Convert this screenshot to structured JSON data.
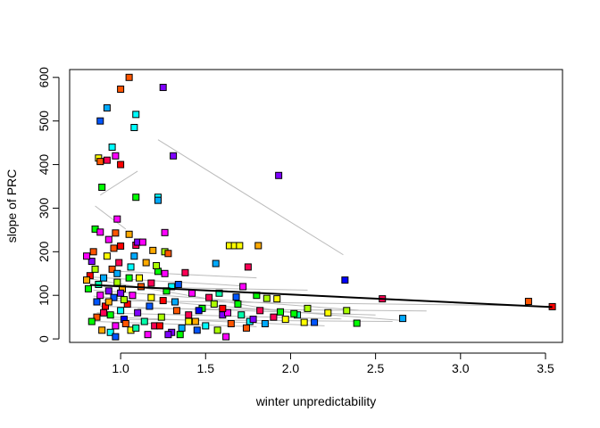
{
  "chart_data": {
    "type": "scatter",
    "title": "",
    "xlabel": "winter unpredictability",
    "ylabel": "slope of PRC",
    "xlim": [
      0.7,
      3.6
    ],
    "ylim": [
      -8,
      618
    ],
    "x_ticks": [
      1.0,
      1.5,
      2.0,
      2.5,
      3.0,
      3.5
    ],
    "x_tick_labels": [
      "1.0",
      "1.5",
      "2.0",
      "2.5",
      "3.0",
      "3.5"
    ],
    "y_ticks": [
      0,
      100,
      200,
      300,
      400,
      500,
      600
    ],
    "y_tick_labels": [
      "0",
      "100",
      "200",
      "300",
      "400",
      "500",
      "600"
    ],
    "grid": false,
    "legend": "none",
    "marker": "square with black border, one fill color per point (rainbow palette)",
    "fit_line": {
      "color": "#000000",
      "x": [
        0.82,
        3.54
      ],
      "y": [
        124,
        73
      ]
    },
    "thin_lines": {
      "color": "#bbbbbb",
      "segments": [
        [
          [
            1.22,
            457
          ],
          [
            2.31,
            193
          ]
        ],
        [
          [
            0.88,
            330
          ],
          [
            1.1,
            385
          ]
        ],
        [
          [
            0.85,
            305
          ],
          [
            1.03,
            252
          ]
        ],
        [
          [
            0.82,
            142
          ],
          [
            1.7,
            122
          ]
        ],
        [
          [
            0.82,
            138
          ],
          [
            2.0,
            60
          ]
        ],
        [
          [
            0.84,
            112
          ],
          [
            2.4,
            66
          ]
        ],
        [
          [
            0.84,
            98
          ],
          [
            2.66,
            42
          ]
        ],
        [
          [
            0.9,
            88
          ],
          [
            3.4,
            76
          ]
        ],
        [
          [
            0.86,
            60
          ],
          [
            2.3,
            46
          ]
        ],
        [
          [
            0.84,
            52
          ],
          [
            2.2,
            30
          ]
        ],
        [
          [
            0.95,
            45
          ],
          [
            2.6,
            40
          ]
        ],
        [
          [
            1.1,
            70
          ],
          [
            2.8,
            64
          ]
        ],
        [
          [
            0.85,
            40
          ],
          [
            1.8,
            28
          ]
        ],
        [
          [
            1.0,
            155
          ],
          [
            1.8,
            140
          ]
        ],
        [
          [
            0.9,
            120
          ],
          [
            2.1,
            112
          ]
        ],
        [
          [
            0.88,
            75
          ],
          [
            2.5,
            55
          ]
        ]
      ]
    },
    "points": [
      {
        "x": 1.05,
        "y": 600,
        "color": "#ff5500"
      },
      {
        "x": 1.0,
        "y": 573,
        "color": "#ff5500"
      },
      {
        "x": 0.92,
        "y": 530,
        "color": "#00aaff"
      },
      {
        "x": 0.88,
        "y": 500,
        "color": "#0055ff"
      },
      {
        "x": 1.09,
        "y": 515,
        "color": "#00ffff"
      },
      {
        "x": 1.08,
        "y": 485,
        "color": "#00ffff"
      },
      {
        "x": 1.25,
        "y": 577,
        "color": "#7f00ff"
      },
      {
        "x": 0.95,
        "y": 440,
        "color": "#00ffff"
      },
      {
        "x": 0.97,
        "y": 420,
        "color": "#ff00ff"
      },
      {
        "x": 0.87,
        "y": 415,
        "color": "#ffff00"
      },
      {
        "x": 0.88,
        "y": 407,
        "color": "#ff5500"
      },
      {
        "x": 0.92,
        "y": 410,
        "color": "#ff0055"
      },
      {
        "x": 1.0,
        "y": 400,
        "color": "#ff0000"
      },
      {
        "x": 1.31,
        "y": 420,
        "color": "#7f00ff"
      },
      {
        "x": 1.93,
        "y": 375,
        "color": "#7f00ff"
      },
      {
        "x": 0.89,
        "y": 348,
        "color": "#00ff00"
      },
      {
        "x": 1.09,
        "y": 325,
        "color": "#00ff00"
      },
      {
        "x": 1.22,
        "y": 325,
        "color": "#00ffff"
      },
      {
        "x": 1.22,
        "y": 318,
        "color": "#00aaff"
      },
      {
        "x": 0.98,
        "y": 275,
        "color": "#ff00ff"
      },
      {
        "x": 0.85,
        "y": 252,
        "color": "#00ff00"
      },
      {
        "x": 0.88,
        "y": 245,
        "color": "#ff00ff"
      },
      {
        "x": 0.97,
        "y": 243,
        "color": "#ff5500"
      },
      {
        "x": 1.05,
        "y": 240,
        "color": "#ffaa00"
      },
      {
        "x": 1.26,
        "y": 244,
        "color": "#ff00ff"
      },
      {
        "x": 0.93,
        "y": 228,
        "color": "#ff00ff"
      },
      {
        "x": 1.09,
        "y": 215,
        "color": "#ff0055"
      },
      {
        "x": 1.1,
        "y": 222,
        "color": "#7f00ff"
      },
      {
        "x": 1.0,
        "y": 213,
        "color": "#ff0000"
      },
      {
        "x": 0.96,
        "y": 208,
        "color": "#ff5500"
      },
      {
        "x": 1.13,
        "y": 222,
        "color": "#ff00ff"
      },
      {
        "x": 1.19,
        "y": 203,
        "color": "#ffaa00"
      },
      {
        "x": 1.26,
        "y": 200,
        "color": "#aaff00"
      },
      {
        "x": 1.28,
        "y": 196,
        "color": "#ff5500"
      },
      {
        "x": 1.38,
        "y": 152,
        "color": "#ff0055"
      },
      {
        "x": 1.56,
        "y": 173,
        "color": "#00aaff"
      },
      {
        "x": 1.64,
        "y": 214,
        "color": "#ffff00"
      },
      {
        "x": 1.67,
        "y": 214,
        "color": "#ffff00"
      },
      {
        "x": 1.7,
        "y": 214,
        "color": "#ffff00"
      },
      {
        "x": 1.81,
        "y": 214,
        "color": "#ffaa00"
      },
      {
        "x": 1.75,
        "y": 165,
        "color": "#ff0055"
      },
      {
        "x": 2.32,
        "y": 135,
        "color": "#0000ff"
      },
      {
        "x": 2.54,
        "y": 92,
        "color": "#ff0055"
      },
      {
        "x": 3.4,
        "y": 86,
        "color": "#ff5500"
      },
      {
        "x": 3.54,
        "y": 74,
        "color": "#ff0000"
      },
      {
        "x": 2.66,
        "y": 47,
        "color": "#00aaff"
      },
      {
        "x": 2.39,
        "y": 36,
        "color": "#00ff00"
      },
      {
        "x": 2.33,
        "y": 65,
        "color": "#aaff00"
      },
      {
        "x": 2.22,
        "y": 60,
        "color": "#ffff00"
      },
      {
        "x": 2.1,
        "y": 70,
        "color": "#aaff00"
      },
      {
        "x": 2.14,
        "y": 38,
        "color": "#0055ff"
      },
      {
        "x": 2.08,
        "y": 38,
        "color": "#ffff00"
      },
      {
        "x": 2.04,
        "y": 55,
        "color": "#00ffaa"
      },
      {
        "x": 1.92,
        "y": 92,
        "color": "#ffff00"
      },
      {
        "x": 1.86,
        "y": 93,
        "color": "#aaff00"
      },
      {
        "x": 1.8,
        "y": 100,
        "color": "#00ff00"
      },
      {
        "x": 1.72,
        "y": 120,
        "color": "#ff00ff"
      },
      {
        "x": 1.68,
        "y": 96,
        "color": "#0055ff"
      },
      {
        "x": 1.94,
        "y": 62,
        "color": "#00ff00"
      },
      {
        "x": 1.82,
        "y": 65,
        "color": "#ff0055"
      },
      {
        "x": 1.76,
        "y": 40,
        "color": "#00ffff"
      },
      {
        "x": 1.71,
        "y": 55,
        "color": "#00ffaa"
      },
      {
        "x": 1.65,
        "y": 35,
        "color": "#ff5500"
      },
      {
        "x": 1.62,
        "y": 5,
        "color": "#ff00ff"
      },
      {
        "x": 1.6,
        "y": 55,
        "color": "#7f00ff"
      },
      {
        "x": 1.55,
        "y": 80,
        "color": "#aaff00"
      },
      {
        "x": 1.52,
        "y": 95,
        "color": "#ff0055"
      },
      {
        "x": 1.48,
        "y": 70,
        "color": "#00ff00"
      },
      {
        "x": 1.45,
        "y": 20,
        "color": "#0055ff"
      },
      {
        "x": 1.42,
        "y": 105,
        "color": "#ff00ff"
      },
      {
        "x": 1.4,
        "y": 40,
        "color": "#ffff00"
      },
      {
        "x": 1.36,
        "y": 25,
        "color": "#00aaff"
      },
      {
        "x": 1.34,
        "y": 125,
        "color": "#0055ff"
      },
      {
        "x": 1.33,
        "y": 65,
        "color": "#ff5500"
      },
      {
        "x": 1.3,
        "y": 15,
        "color": "#7f00ff"
      },
      {
        "x": 1.3,
        "y": 120,
        "color": "#00ffff"
      },
      {
        "x": 1.27,
        "y": 110,
        "color": "#00ff00"
      },
      {
        "x": 1.25,
        "y": 88,
        "color": "#ff0000"
      },
      {
        "x": 1.24,
        "y": 50,
        "color": "#aaff00"
      },
      {
        "x": 1.22,
        "y": 155,
        "color": "#00ff00"
      },
      {
        "x": 1.21,
        "y": 168,
        "color": "#aaff00"
      },
      {
        "x": 1.2,
        "y": 30,
        "color": "#ff0055"
      },
      {
        "x": 1.18,
        "y": 95,
        "color": "#ffff00"
      },
      {
        "x": 1.17,
        "y": 75,
        "color": "#0055ff"
      },
      {
        "x": 1.15,
        "y": 175,
        "color": "#ffaa00"
      },
      {
        "x": 1.14,
        "y": 40,
        "color": "#00ffaa"
      },
      {
        "x": 1.12,
        "y": 120,
        "color": "#ff5500"
      },
      {
        "x": 1.1,
        "y": 60,
        "color": "#7f00ff"
      },
      {
        "x": 1.08,
        "y": 190,
        "color": "#00aaff"
      },
      {
        "x": 1.07,
        "y": 100,
        "color": "#ff00ff"
      },
      {
        "x": 1.06,
        "y": 20,
        "color": "#ffff00"
      },
      {
        "x": 1.05,
        "y": 140,
        "color": "#00ff00"
      },
      {
        "x": 1.04,
        "y": 80,
        "color": "#ff0000"
      },
      {
        "x": 1.02,
        "y": 45,
        "color": "#0000ff"
      },
      {
        "x": 1.01,
        "y": 115,
        "color": "#ffaa00"
      },
      {
        "x": 1.0,
        "y": 65,
        "color": "#00ffff"
      },
      {
        "x": 0.99,
        "y": 175,
        "color": "#ff0055"
      },
      {
        "x": 0.98,
        "y": 130,
        "color": "#aaff00"
      },
      {
        "x": 0.97,
        "y": 30,
        "color": "#ff00ff"
      },
      {
        "x": 0.96,
        "y": 95,
        "color": "#0055ff"
      },
      {
        "x": 0.95,
        "y": 160,
        "color": "#ff5500"
      },
      {
        "x": 0.94,
        "y": 55,
        "color": "#00ff00"
      },
      {
        "x": 0.93,
        "y": 110,
        "color": "#7f00ff"
      },
      {
        "x": 0.92,
        "y": 190,
        "color": "#ffff00"
      },
      {
        "x": 0.91,
        "y": 75,
        "color": "#ff0000"
      },
      {
        "x": 0.9,
        "y": 140,
        "color": "#00aaff"
      },
      {
        "x": 0.89,
        "y": 20,
        "color": "#ffaa00"
      },
      {
        "x": 0.88,
        "y": 100,
        "color": "#ff00ff"
      },
      {
        "x": 0.87,
        "y": 125,
        "color": "#00ffaa"
      },
      {
        "x": 0.86,
        "y": 50,
        "color": "#ff5500"
      },
      {
        "x": 0.85,
        "y": 160,
        "color": "#aaff00"
      },
      {
        "x": 0.84,
        "y": 200,
        "color": "#ff5500"
      },
      {
        "x": 0.83,
        "y": 178,
        "color": "#7f00ff"
      },
      {
        "x": 0.82,
        "y": 145,
        "color": "#ff0000"
      },
      {
        "x": 0.81,
        "y": 115,
        "color": "#00ff00"
      },
      {
        "x": 0.8,
        "y": 135,
        "color": "#ffaa00"
      },
      {
        "x": 0.8,
        "y": 190,
        "color": "#ff00ff"
      },
      {
        "x": 0.83,
        "y": 40,
        "color": "#00ff00"
      },
      {
        "x": 0.86,
        "y": 85,
        "color": "#0055ff"
      },
      {
        "x": 0.9,
        "y": 60,
        "color": "#ff0055"
      },
      {
        "x": 0.94,
        "y": 15,
        "color": "#00ffff"
      },
      {
        "x": 0.97,
        "y": 5,
        "color": "#0055ff"
      },
      {
        "x": 1.03,
        "y": 35,
        "color": "#ff5500"
      },
      {
        "x": 1.09,
        "y": 25,
        "color": "#00ffaa"
      },
      {
        "x": 1.16,
        "y": 10,
        "color": "#ff00ff"
      },
      {
        "x": 1.23,
        "y": 30,
        "color": "#ff0000"
      },
      {
        "x": 1.28,
        "y": 10,
        "color": "#7f00ff"
      },
      {
        "x": 1.35,
        "y": 10,
        "color": "#00ff00"
      },
      {
        "x": 1.4,
        "y": 55,
        "color": "#ff0055"
      },
      {
        "x": 1.44,
        "y": 40,
        "color": "#ffaa00"
      },
      {
        "x": 1.5,
        "y": 30,
        "color": "#00ffff"
      },
      {
        "x": 1.57,
        "y": 20,
        "color": "#aaff00"
      },
      {
        "x": 1.63,
        "y": 60,
        "color": "#ff00ff"
      },
      {
        "x": 1.69,
        "y": 80,
        "color": "#00ff00"
      },
      {
        "x": 1.74,
        "y": 25,
        "color": "#ff5500"
      },
      {
        "x": 1.78,
        "y": 45,
        "color": "#7f00ff"
      },
      {
        "x": 1.85,
        "y": 35,
        "color": "#00aaff"
      },
      {
        "x": 1.9,
        "y": 50,
        "color": "#ff0055"
      },
      {
        "x": 1.97,
        "y": 45,
        "color": "#ffff00"
      },
      {
        "x": 2.02,
        "y": 58,
        "color": "#00ff00"
      },
      {
        "x": 0.98,
        "y": 150,
        "color": "#00aaff"
      },
      {
        "x": 1.02,
        "y": 90,
        "color": "#aaff00"
      },
      {
        "x": 1.11,
        "y": 140,
        "color": "#ffff00"
      },
      {
        "x": 1.18,
        "y": 128,
        "color": "#ff0055"
      },
      {
        "x": 1.0,
        "y": 105,
        "color": "#7f00ff"
      },
      {
        "x": 0.93,
        "y": 85,
        "color": "#ffaa00"
      },
      {
        "x": 1.06,
        "y": 165,
        "color": "#00ffff"
      },
      {
        "x": 1.26,
        "y": 150,
        "color": "#ff00ff"
      },
      {
        "x": 1.46,
        "y": 65,
        "color": "#0000ff"
      },
      {
        "x": 1.58,
        "y": 105,
        "color": "#00ffaa"
      },
      {
        "x": 1.6,
        "y": 70,
        "color": "#ff0000"
      },
      {
        "x": 1.32,
        "y": 85,
        "color": "#00aaff"
      }
    ]
  }
}
